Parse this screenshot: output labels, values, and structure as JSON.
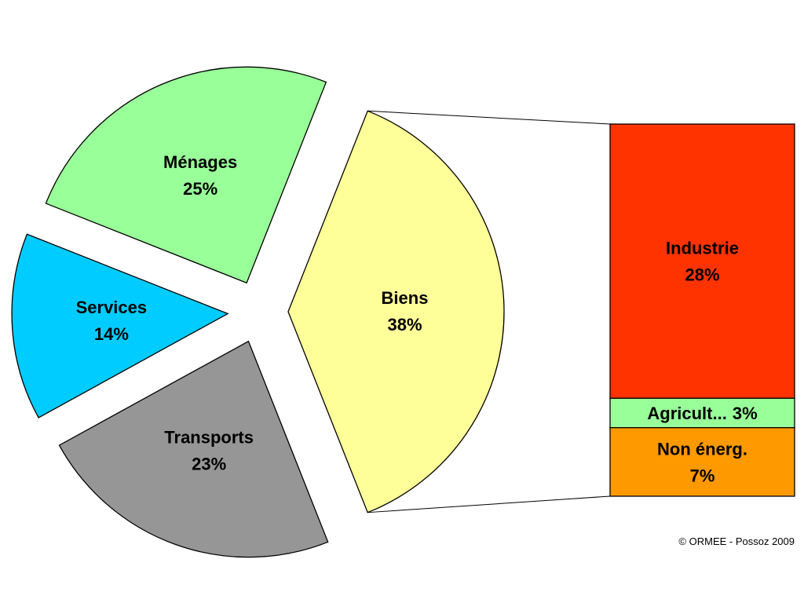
{
  "chart_data": {
    "type": "pie-of-bar",
    "pie": {
      "categories": [
        "Ménages",
        "Services",
        "Transports",
        "Biens"
      ],
      "values": [
        25,
        14,
        23,
        38
      ],
      "value_labels": [
        "25%",
        "14%",
        "23%",
        "38%"
      ],
      "colors": [
        "#99ff99",
        "#00ccff",
        "#969696",
        "#ffff99"
      ]
    },
    "bar": {
      "categories": [
        "Industrie",
        "Agricult...",
        "Non énerg."
      ],
      "values": [
        28,
        3,
        7
      ],
      "value_labels": [
        "28%",
        "3%",
        "7%"
      ],
      "colors": [
        "#ff3300",
        "#99ff99",
        "#ff9900"
      ]
    },
    "annotation": "© ORMEE - Possoz 2009"
  }
}
